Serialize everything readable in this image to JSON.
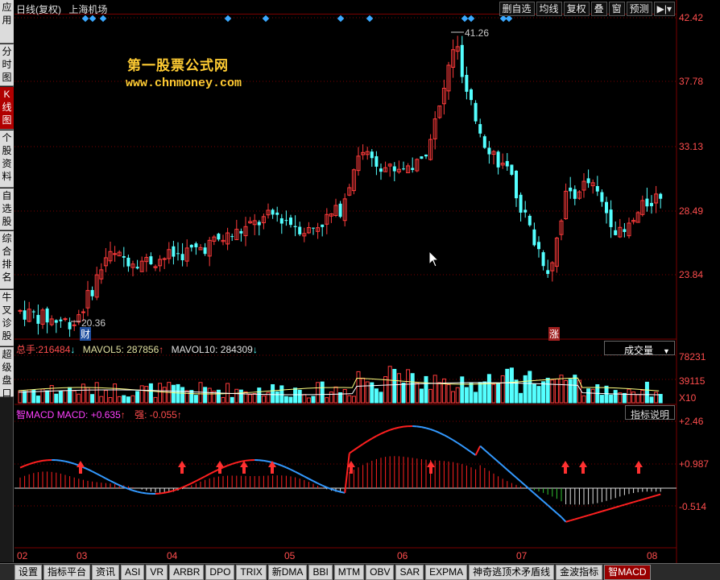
{
  "sidebar": {
    "tabs": [
      {
        "label": "应用"
      },
      {
        "label": "分时图"
      },
      {
        "label": "K线图"
      },
      {
        "label": "个股资料"
      },
      {
        "label": "自选股"
      },
      {
        "label": "综合排名"
      },
      {
        "label": "牛叉诊股"
      },
      {
        "label": "超级盘口"
      }
    ]
  },
  "header": {
    "period": "日线(复权)",
    "stock": "上海机场",
    "toolbar": [
      "删自选",
      "均线",
      "复权",
      "叠",
      "窗",
      "预测"
    ],
    "nav_icon": "arrow-end-icon"
  },
  "watermark": {
    "line1": "第一股票公式网",
    "line2": "www.chnmoney.com"
  },
  "price_axis": [
    "42.42",
    "37.78",
    "33.13",
    "28.49",
    "23.84"
  ],
  "annotations": {
    "high": "41.26",
    "low": "20.36",
    "low_tag": "财",
    "mark_tag": "涨"
  },
  "volume": {
    "label": "总手:",
    "value": "216484",
    "ma5_label": "MAVOL5:",
    "ma5_value": "287856",
    "ma10_label": "MAVOL10:",
    "ma10_value": "284309",
    "selector": "成交量",
    "axis": [
      "78231",
      "39115",
      "X10"
    ]
  },
  "macd": {
    "name": "智MACD",
    "macd_label": "MACD:",
    "macd_value": "+0.635",
    "strong_label": "强:",
    "strong_value": "-0.055",
    "help_button": "指标说明",
    "axis": [
      "+2.46",
      "+0.987",
      "-0.514"
    ]
  },
  "time_axis": [
    "02",
    "03",
    "04",
    "05",
    "06",
    "07",
    "08"
  ],
  "bottom_tabs": [
    "设置",
    "指标平台",
    "资讯",
    "ASI",
    "VR",
    "ARBR",
    "DPO",
    "TRIX",
    "新DMA",
    "BBI",
    "MTM",
    "OBV",
    "SAR",
    "EXPMA",
    "神奇逃顶术矛盾线",
    "金波指标",
    "智MACD"
  ],
  "colors": {
    "up": "#ff3b3b",
    "down": "#54ffff",
    "grid": "#7a0000",
    "axis_text": "#ff4d4d",
    "macd_up": "#ff2020",
    "macd_down": "#3399ff"
  }
}
